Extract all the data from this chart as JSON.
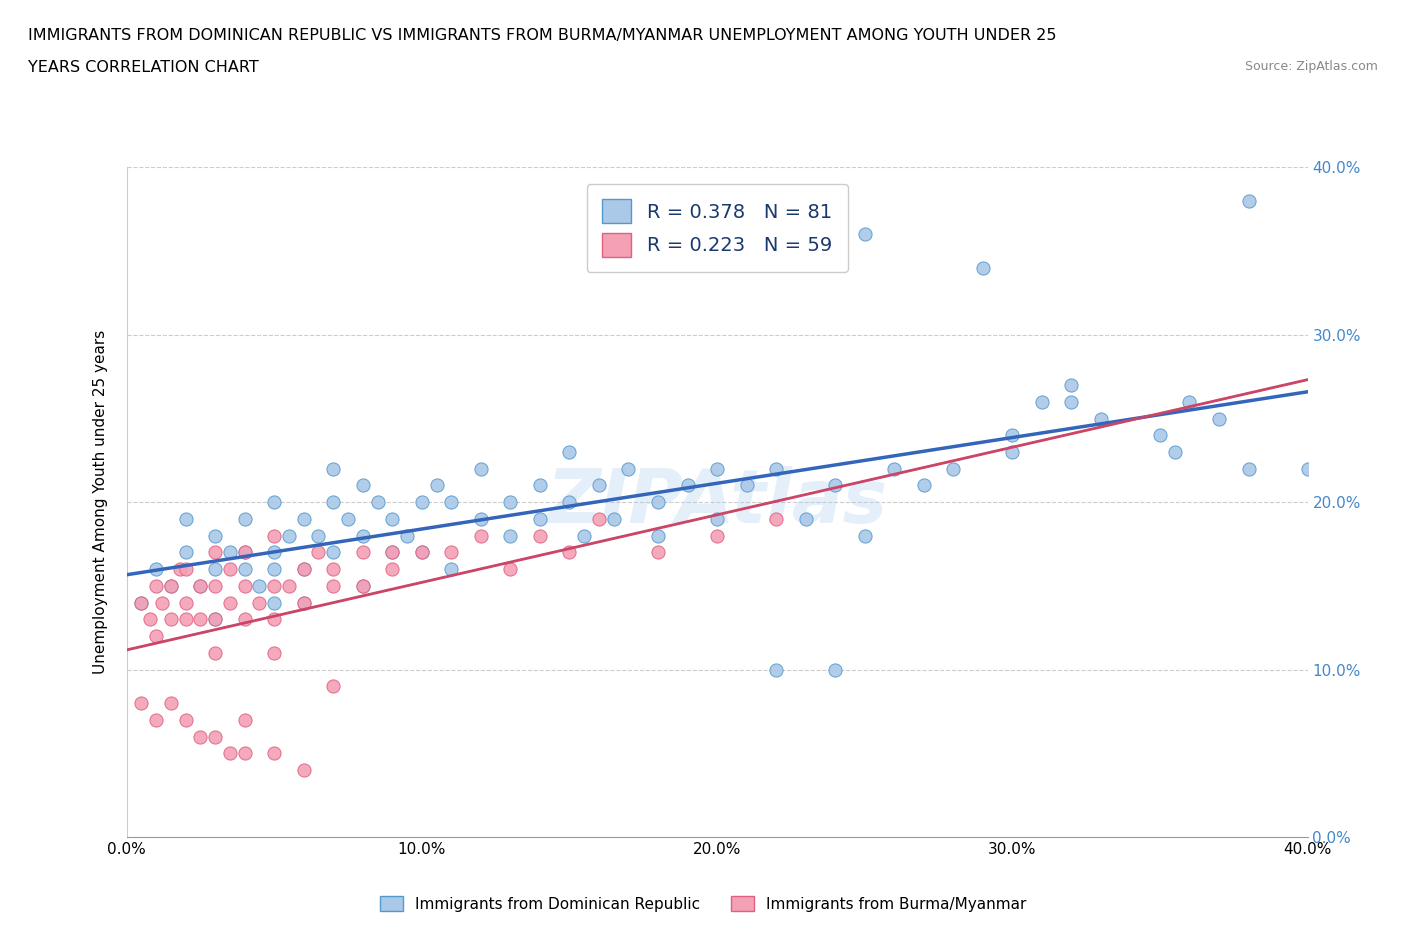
{
  "title_line1": "IMMIGRANTS FROM DOMINICAN REPUBLIC VS IMMIGRANTS FROM BURMA/MYANMAR UNEMPLOYMENT AMONG YOUTH UNDER 25",
  "title_line2": "YEARS CORRELATION CHART",
  "source": "Source: ZipAtlas.com",
  "ylabel": "Unemployment Among Youth under 25 years",
  "xlim": [
    0.0,
    0.4
  ],
  "ylim": [
    0.0,
    0.4
  ],
  "xticks": [
    0.0,
    0.1,
    0.2,
    0.3,
    0.4
  ],
  "yticks": [
    0.0,
    0.1,
    0.2,
    0.3,
    0.4
  ],
  "color_blue": "#aac8e8",
  "color_pink": "#f4a0b5",
  "edge_blue": "#5599cc",
  "edge_pink": "#e06080",
  "line_blue": "#3366bb",
  "line_pink": "#cc4466",
  "line_dashed": "#cc8899",
  "R_blue": 0.378,
  "N_blue": 81,
  "R_pink": 0.223,
  "N_pink": 59,
  "watermark": "ZIPAtlas",
  "right_tick_color": "#4488cc",
  "blue_x": [
    0.005,
    0.01,
    0.015,
    0.02,
    0.02,
    0.025,
    0.03,
    0.03,
    0.03,
    0.035,
    0.04,
    0.04,
    0.04,
    0.045,
    0.05,
    0.05,
    0.05,
    0.05,
    0.055,
    0.06,
    0.06,
    0.06,
    0.065,
    0.07,
    0.07,
    0.07,
    0.075,
    0.08,
    0.08,
    0.08,
    0.085,
    0.09,
    0.09,
    0.095,
    0.1,
    0.1,
    0.105,
    0.11,
    0.11,
    0.12,
    0.12,
    0.13,
    0.13,
    0.14,
    0.14,
    0.15,
    0.15,
    0.155,
    0.16,
    0.165,
    0.17,
    0.18,
    0.18,
    0.19,
    0.2,
    0.2,
    0.21,
    0.22,
    0.23,
    0.24,
    0.25,
    0.26,
    0.27,
    0.28,
    0.3,
    0.3,
    0.31,
    0.32,
    0.33,
    0.35,
    0.355,
    0.36,
    0.37,
    0.38,
    0.38,
    0.4,
    0.25,
    0.29,
    0.32,
    0.24,
    0.22
  ],
  "blue_y": [
    0.14,
    0.16,
    0.15,
    0.17,
    0.19,
    0.15,
    0.18,
    0.16,
    0.13,
    0.17,
    0.17,
    0.19,
    0.16,
    0.15,
    0.17,
    0.2,
    0.14,
    0.16,
    0.18,
    0.19,
    0.16,
    0.14,
    0.18,
    0.2,
    0.22,
    0.17,
    0.19,
    0.18,
    0.21,
    0.15,
    0.2,
    0.19,
    0.17,
    0.18,
    0.2,
    0.17,
    0.21,
    0.2,
    0.16,
    0.19,
    0.22,
    0.2,
    0.18,
    0.21,
    0.19,
    0.2,
    0.23,
    0.18,
    0.21,
    0.19,
    0.22,
    0.2,
    0.18,
    0.21,
    0.22,
    0.19,
    0.21,
    0.22,
    0.19,
    0.21,
    0.18,
    0.22,
    0.21,
    0.22,
    0.24,
    0.23,
    0.26,
    0.26,
    0.25,
    0.24,
    0.23,
    0.26,
    0.25,
    0.22,
    0.38,
    0.22,
    0.36,
    0.34,
    0.27,
    0.1,
    0.1
  ],
  "pink_x": [
    0.005,
    0.008,
    0.01,
    0.01,
    0.012,
    0.015,
    0.015,
    0.018,
    0.02,
    0.02,
    0.02,
    0.025,
    0.025,
    0.03,
    0.03,
    0.03,
    0.03,
    0.035,
    0.035,
    0.04,
    0.04,
    0.04,
    0.045,
    0.05,
    0.05,
    0.05,
    0.05,
    0.055,
    0.06,
    0.06,
    0.065,
    0.07,
    0.07,
    0.08,
    0.08,
    0.09,
    0.09,
    0.1,
    0.11,
    0.12,
    0.13,
    0.14,
    0.15,
    0.16,
    0.18,
    0.2,
    0.22,
    0.005,
    0.01,
    0.015,
    0.02,
    0.025,
    0.03,
    0.035,
    0.04,
    0.04,
    0.05,
    0.06,
    0.07
  ],
  "pink_y": [
    0.14,
    0.13,
    0.15,
    0.12,
    0.14,
    0.15,
    0.13,
    0.16,
    0.14,
    0.16,
    0.13,
    0.15,
    0.13,
    0.15,
    0.13,
    0.11,
    0.17,
    0.14,
    0.16,
    0.15,
    0.13,
    0.17,
    0.14,
    0.15,
    0.13,
    0.11,
    0.18,
    0.15,
    0.14,
    0.16,
    0.17,
    0.16,
    0.15,
    0.17,
    0.15,
    0.16,
    0.17,
    0.17,
    0.17,
    0.18,
    0.16,
    0.18,
    0.17,
    0.19,
    0.17,
    0.18,
    0.19,
    0.08,
    0.07,
    0.08,
    0.07,
    0.06,
    0.06,
    0.05,
    0.05,
    0.07,
    0.05,
    0.04,
    0.09
  ]
}
